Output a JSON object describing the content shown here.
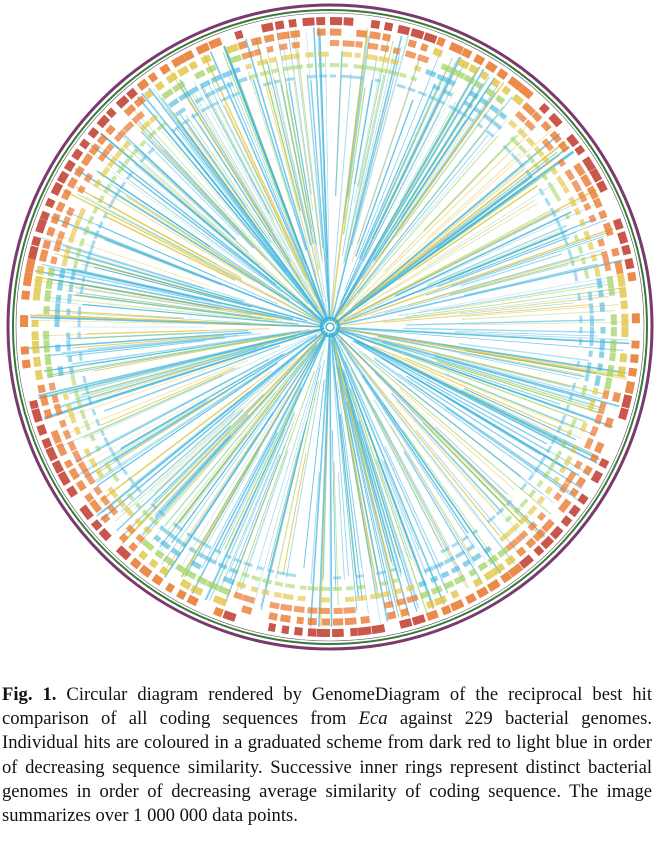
{
  "figure": {
    "label": "Fig. 1.",
    "caption_part1": "Circular diagram rendered by GenomeDiagram of the reciprocal best hit comparison of all coding sequences from ",
    "caption_italic": "Eca",
    "caption_part2": " against 229 bacterial genomes. Individual hits are coloured in a graduated scheme from dark red to light blue in order of decreasing sequence similarity. Successive inner rings represent distinct bacterial genomes in order of decreasing average similarity of coding sequence. The image summarizes over 1 000 000 data points."
  },
  "diagram": {
    "colors": {
      "high_similarity": "#c0392b",
      "mid_high": "#e8752a",
      "mid": "#e0c23a",
      "mid_low": "#9ccf5a",
      "low_similarity": "#3fb4dc",
      "outer_ring": "#7a3a6e",
      "backbone": "#3a7a3a"
    }
  }
}
